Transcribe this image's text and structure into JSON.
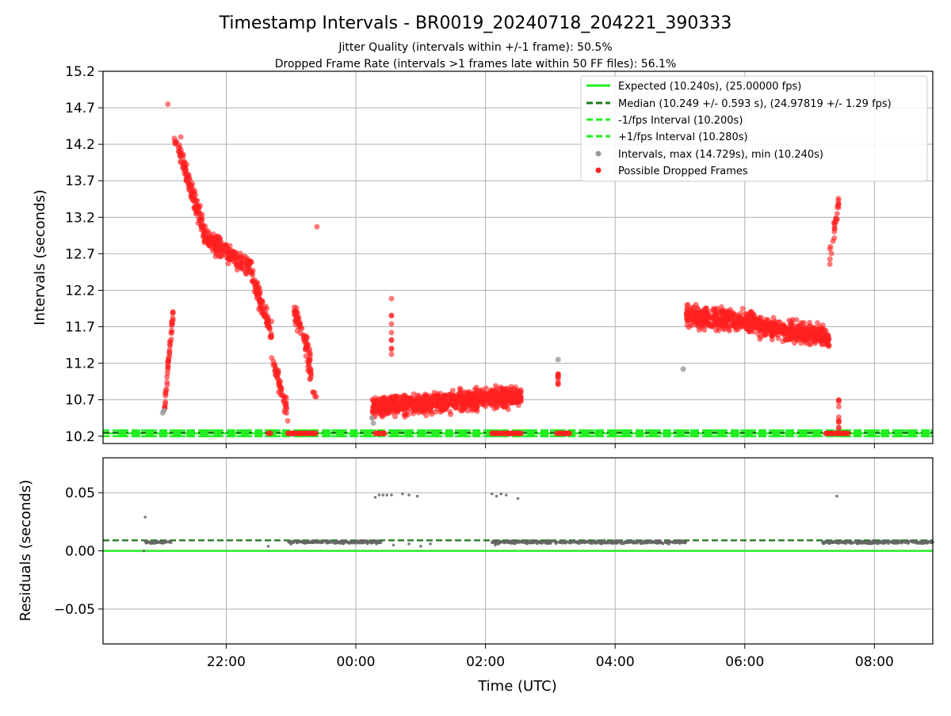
{
  "title": "Timestamp Intervals - BR0019_20240718_204221_390333",
  "subtitle_line1": "Jitter Quality (intervals within +/-1 frame): 50.5%",
  "subtitle_line2": "Dropped Frame Rate (intervals >1 frames late within 50 FF files): 56.1%",
  "colors": {
    "expected": "#22ee22",
    "median": "#1a7a1a",
    "fps_band": "#22ee22",
    "intervals": "#9a9a9a",
    "dropped": "#ff2020",
    "residuals": "#666666",
    "grid": "#b0b0b0"
  },
  "chart_data": [
    {
      "type": "scatter",
      "ylabel": "Intervals (seconds)",
      "ylim": [
        10.1,
        15.2
      ],
      "xlim_hours": [
        -3.9,
        8.9
      ],
      "yticks": [
        "10.2",
        "10.7",
        "11.2",
        "11.7",
        "12.2",
        "12.7",
        "13.2",
        "13.7",
        "14.2",
        "14.7",
        "15.2"
      ],
      "grid": true,
      "legend_position": "top-right",
      "legend": [
        "Expected (10.240s), (25.00000 fps)",
        "Median (10.249 +/- 0.593 s), (24.97819 +/- 1.29 fps)",
        "-1/fps Interval (10.200s)",
        "+1/fps Interval (10.280s)",
        "Intervals, max (14.729s), min (10.240s)",
        "Possible Dropped Frames"
      ],
      "lines": {
        "expected": 10.24,
        "median": 10.249,
        "minus_fps": 10.2,
        "plus_fps": 10.28
      },
      "dropped_clusters": [
        {
          "x_start": -2.95,
          "x_end": -2.82,
          "y_start": 10.6,
          "y_end": 11.9,
          "n": 45
        },
        {
          "x_start": -2.8,
          "x_end": -2.3,
          "y_start": 14.3,
          "y_end": 12.9,
          "n": 140
        },
        {
          "x_start": -2.3,
          "x_end": -1.6,
          "y_start": 12.9,
          "y_end": 12.5,
          "n": 180
        },
        {
          "x_start": -1.6,
          "x_end": -1.3,
          "y_start": 12.4,
          "y_end": 11.6,
          "n": 90
        },
        {
          "x_start": -1.3,
          "x_end": -1.05,
          "y_start": 11.3,
          "y_end": 10.5,
          "n": 50
        },
        {
          "x_start": -0.95,
          "x_end": -0.7,
          "y_start": 11.9,
          "y_end": 11.3,
          "n": 60
        },
        {
          "x_start": -0.75,
          "x_end": -0.6,
          "y_start": 11.2,
          "y_end": 10.7,
          "n": 20
        },
        {
          "x_start": 0.25,
          "x_end": 2.55,
          "y_start": 10.6,
          "y_end": 10.75,
          "n": 900
        },
        {
          "x_start": 5.1,
          "x_end": 6.2,
          "y_start": 11.85,
          "y_end": 11.75,
          "n": 380
        },
        {
          "x_start": 6.2,
          "x_end": 7.3,
          "y_start": 11.7,
          "y_end": 11.55,
          "n": 380
        },
        {
          "x_start": 7.3,
          "x_end": 7.45,
          "y_start": 12.6,
          "y_end": 13.4,
          "n": 25
        }
      ],
      "dropped_spikes": [
        {
          "x": 0.55,
          "y_from": 11.2,
          "y_to": 12.3
        },
        {
          "x": 3.12,
          "y_from": 10.9,
          "y_to": 11.1
        },
        {
          "x": 7.45,
          "y_from": 10.3,
          "y_to": 10.7
        }
      ],
      "dropped_outliers": [
        {
          "x": -0.6,
          "y": 13.07
        },
        {
          "x": -2.9,
          "y": 14.75
        },
        {
          "x": -2.7,
          "y": 14.3
        }
      ],
      "dropped_baseline_runs": [
        {
          "x_start": -1.35,
          "x_end": -1.3
        },
        {
          "x_start": -1.05,
          "x_end": -0.6
        },
        {
          "x_start": 0.3,
          "x_end": 0.45
        },
        {
          "x_start": 2.1,
          "x_end": 2.55
        },
        {
          "x_start": 3.1,
          "x_end": 3.3
        },
        {
          "x_start": 7.25,
          "x_end": 7.6
        }
      ],
      "gray_points": [
        {
          "x": -2.98,
          "y": 10.52
        },
        {
          "x": -2.96,
          "y": 10.55
        },
        {
          "x": 0.25,
          "y": 10.45
        },
        {
          "x": 0.27,
          "y": 10.38
        },
        {
          "x": 3.12,
          "y": 11.25
        },
        {
          "x": 5.05,
          "y": 11.12
        }
      ],
      "baseline_marker_spacing_hours": 0.21
    },
    {
      "type": "scatter",
      "xlabel": "Time (UTC)",
      "ylabel": "Residuals (seconds)",
      "ylim": [
        -0.08,
        0.08
      ],
      "xlim_hours": [
        -3.9,
        8.9
      ],
      "xticks": [
        {
          "hours": -2,
          "label": "22:00"
        },
        {
          "hours": 0,
          "label": "00:00"
        },
        {
          "hours": 2,
          "label": "02:00"
        },
        {
          "hours": 4,
          "label": "04:00"
        },
        {
          "hours": 6,
          "label": "06:00"
        },
        {
          "hours": 8,
          "label": "08:00"
        }
      ],
      "yticks": [
        {
          "value": 0.05,
          "label": "0.05"
        },
        {
          "value": 0.0,
          "label": "0.00"
        },
        {
          "value": -0.05,
          "label": "−0.05"
        }
      ],
      "grid": true,
      "lines": {
        "expected": 0.0,
        "median": 0.009
      },
      "residual_bands": [
        {
          "x_start": -3.25,
          "x_end": -2.85,
          "y": 0.0075
        },
        {
          "x_start": -1.05,
          "x_end": 0.4,
          "y": 0.0075
        },
        {
          "x_start": 2.1,
          "x_end": 5.1,
          "y": 0.0075
        },
        {
          "x_start": 7.2,
          "x_end": 8.9,
          "y": 0.0075
        }
      ],
      "residual_points": [
        {
          "x": -3.25,
          "y": 0.029
        },
        {
          "x": -3.27,
          "y": 0.0
        },
        {
          "x": -1.35,
          "y": 0.004
        },
        {
          "x": -1.0,
          "y": 0.006
        },
        {
          "x": 0.3,
          "y": 0.046
        },
        {
          "x": 0.36,
          "y": 0.048
        },
        {
          "x": 0.42,
          "y": 0.048
        },
        {
          "x": 0.48,
          "y": 0.048
        },
        {
          "x": 0.55,
          "y": 0.048
        },
        {
          "x": 0.72,
          "y": 0.049
        },
        {
          "x": 0.82,
          "y": 0.048
        },
        {
          "x": 0.95,
          "y": 0.047
        },
        {
          "x": 0.58,
          "y": 0.005
        },
        {
          "x": 0.82,
          "y": 0.006
        },
        {
          "x": 1.0,
          "y": 0.004
        },
        {
          "x": 1.15,
          "y": 0.006
        },
        {
          "x": 2.1,
          "y": 0.049
        },
        {
          "x": 2.17,
          "y": 0.047
        },
        {
          "x": 2.24,
          "y": 0.049
        },
        {
          "x": 2.32,
          "y": 0.048
        },
        {
          "x": 2.5,
          "y": 0.045
        },
        {
          "x": 2.15,
          "y": 0.005
        },
        {
          "x": 2.2,
          "y": 0.006
        },
        {
          "x": 7.42,
          "y": 0.047
        }
      ]
    }
  ]
}
